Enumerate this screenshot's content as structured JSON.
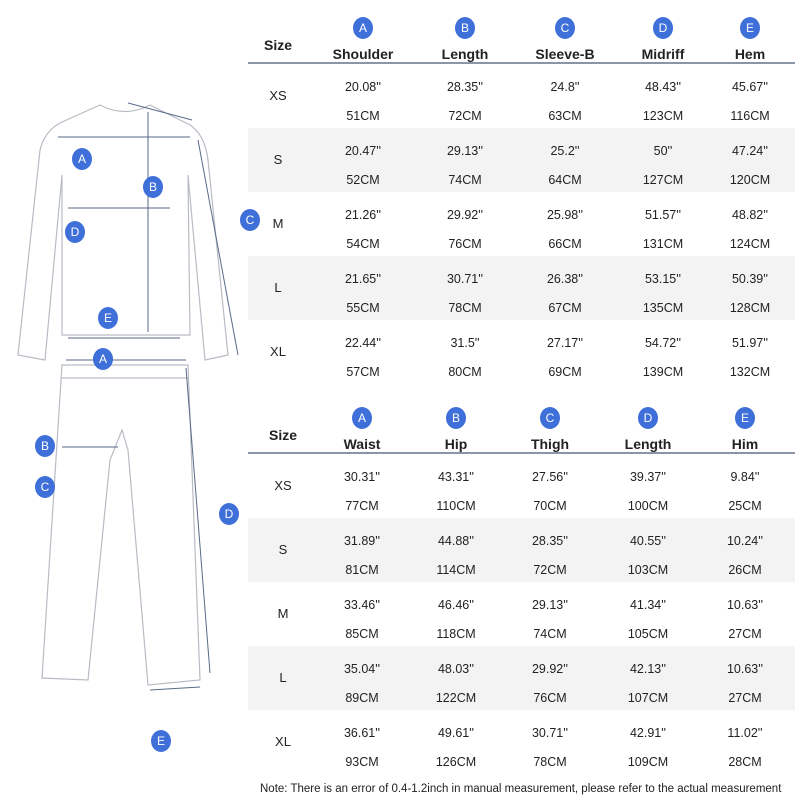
{
  "accent_color": "#3f6fd8",
  "top_table": {
    "size_header": "Size",
    "columns": [
      {
        "badge": "A",
        "label": "Shoulder"
      },
      {
        "badge": "B",
        "label": "Length"
      },
      {
        "badge": "C",
        "label": "Sleeve-B"
      },
      {
        "badge": "D",
        "label": "Midriff"
      },
      {
        "badge": "E",
        "label": "Hem"
      }
    ],
    "rows": [
      {
        "size": "XS",
        "inch": [
          "20.08''",
          "28.35''",
          "24.8''",
          "48.43''",
          "45.67''"
        ],
        "cm": [
          "51CM",
          "72CM",
          "63CM",
          "123CM",
          "116CM"
        ]
      },
      {
        "size": "S",
        "inch": [
          "20.47''",
          "29.13''",
          "25.2''",
          "50''",
          "47.24''"
        ],
        "cm": [
          "52CM",
          "74CM",
          "64CM",
          "127CM",
          "120CM"
        ]
      },
      {
        "size": "M",
        "inch": [
          "21.26''",
          "29.92''",
          "25.98''",
          "51.57''",
          "48.82''"
        ],
        "cm": [
          "54CM",
          "76CM",
          "66CM",
          "131CM",
          "124CM"
        ]
      },
      {
        "size": "L",
        "inch": [
          "21.65''",
          "30.71''",
          "26.38''",
          "53.15''",
          "50.39''"
        ],
        "cm": [
          "55CM",
          "78CM",
          "67CM",
          "135CM",
          "128CM"
        ]
      },
      {
        "size": "XL",
        "inch": [
          "22.44''",
          "31.5''",
          "27.17''",
          "54.72''",
          "51.97''"
        ],
        "cm": [
          "57CM",
          "80CM",
          "69CM",
          "139CM",
          "132CM"
        ]
      }
    ]
  },
  "bottom_table": {
    "size_header": "Size",
    "columns": [
      {
        "badge": "A",
        "label": "Waist"
      },
      {
        "badge": "B",
        "label": "Hip"
      },
      {
        "badge": "C",
        "label": "Thigh"
      },
      {
        "badge": "D",
        "label": "Length"
      },
      {
        "badge": "E",
        "label": "Him"
      }
    ],
    "rows": [
      {
        "size": "XS",
        "inch": [
          "30.31''",
          "43.31''",
          "27.56''",
          "39.37''",
          "9.84''"
        ],
        "cm": [
          "77CM",
          "110CM",
          "70CM",
          "100CM",
          "25CM"
        ]
      },
      {
        "size": "S",
        "inch": [
          "31.89''",
          "44.88''",
          "28.35''",
          "40.55''",
          "10.24''"
        ],
        "cm": [
          "81CM",
          "114CM",
          "72CM",
          "103CM",
          "26CM"
        ]
      },
      {
        "size": "M",
        "inch": [
          "33.46''",
          "46.46''",
          "29.13''",
          "41.34''",
          "10.63''"
        ],
        "cm": [
          "85CM",
          "118CM",
          "74CM",
          "105CM",
          "27CM"
        ]
      },
      {
        "size": "L",
        "inch": [
          "35.04''",
          "48.03''",
          "29.92''",
          "42.13''",
          "10.63''"
        ],
        "cm": [
          "89CM",
          "122CM",
          "76CM",
          "107CM",
          "27CM"
        ]
      },
      {
        "size": "XL",
        "inch": [
          "36.61''",
          "49.61''",
          "30.71''",
          "42.91''",
          "11.02''"
        ],
        "cm": [
          "93CM",
          "126CM",
          "78CM",
          "109CM",
          "28CM"
        ]
      }
    ]
  },
  "shirt_labels": [
    "A",
    "B",
    "C",
    "D",
    "E"
  ],
  "pants_labels": [
    "A",
    "B",
    "C",
    "D",
    "E"
  ],
  "note": "Note: There is an error of 0.4-1.2inch in manual measurement, please refer to the actual measurement"
}
